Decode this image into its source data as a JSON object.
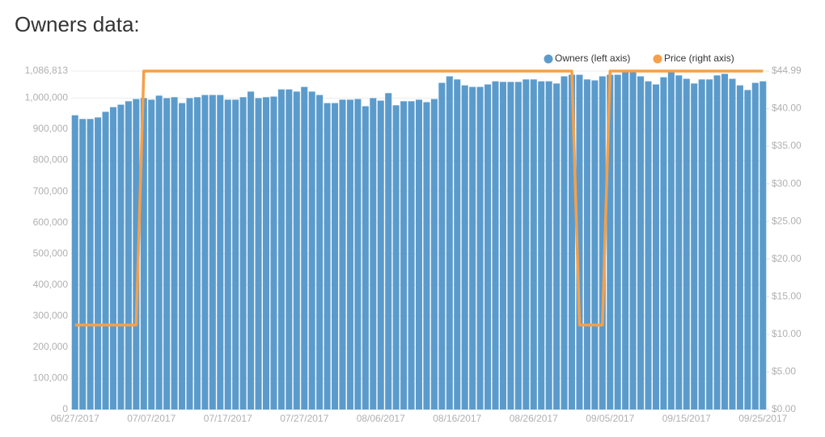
{
  "chart_data": {
    "type": "bar_line",
    "title": "Owners data:",
    "legend": "top-right",
    "grid": true,
    "categories": [
      "06/27/2017",
      null,
      null,
      null,
      null,
      null,
      null,
      null,
      null,
      null,
      "07/07/2017",
      null,
      null,
      null,
      null,
      null,
      null,
      null,
      null,
      null,
      "07/17/2017",
      null,
      null,
      null,
      null,
      null,
      null,
      null,
      null,
      null,
      "07/27/2017",
      null,
      null,
      null,
      null,
      null,
      null,
      null,
      null,
      null,
      "08/06/2017",
      null,
      null,
      null,
      null,
      null,
      null,
      null,
      null,
      null,
      "08/16/2017",
      null,
      null,
      null,
      null,
      null,
      null,
      null,
      null,
      null,
      "08/26/2017",
      null,
      null,
      null,
      null,
      null,
      null,
      null,
      null,
      null,
      "09/05/2017",
      null,
      null,
      null,
      null,
      null,
      null,
      null,
      null,
      null,
      "09/15/2017",
      null,
      null,
      null,
      null,
      null,
      null,
      null,
      null,
      null,
      "09/25/2017"
    ],
    "ylim": [
      0,
      1086813
    ],
    "yticks": [
      0,
      {
        "value": 100000,
        "label": "100,000"
      },
      {
        "value": 200000,
        "label": "200,000"
      },
      {
        "value": 300000,
        "label": "300,000"
      },
      {
        "value": 400000,
        "label": "400,000"
      },
      {
        "value": 500000,
        "label": "500,000"
      },
      {
        "value": 600000,
        "label": "600,000"
      },
      {
        "value": 700000,
        "label": "700,000"
      },
      {
        "value": 800000,
        "label": "800,000"
      },
      {
        "value": 900000,
        "label": "900,000"
      },
      {
        "value": 1000000,
        "label": "1,000,000"
      },
      {
        "value": 1086813,
        "label": "1,086,813"
      }
    ],
    "y2lim": [
      0,
      44.99
    ],
    "y2ticks": [
      {
        "value": 0,
        "label": "$0.00"
      },
      {
        "value": 5,
        "label": "$5.00"
      },
      {
        "value": 10,
        "label": "$10.00"
      },
      {
        "value": 15,
        "label": "$15.00"
      },
      {
        "value": 20,
        "label": "$20.00"
      },
      {
        "value": 25,
        "label": "$25.00"
      },
      {
        "value": 30,
        "label": "$30.00"
      },
      {
        "value": 35,
        "label": "$35.00"
      },
      {
        "value": 40,
        "label": "$40.00"
      },
      {
        "value": 44.99,
        "label": "$44.99"
      }
    ],
    "series": [
      {
        "name": "Owners (left axis)",
        "type": "bar",
        "color": "#5b9bcc",
        "values": [
          945000,
          933000,
          933000,
          938000,
          956000,
          971000,
          979000,
          990000,
          997000,
          1000000,
          995000,
          1008000,
          1000000,
          1003000,
          984000,
          1000000,
          1003000,
          1010000,
          1010000,
          1010000,
          995000,
          995000,
          1003000,
          1021000,
          1000000,
          1003000,
          1005000,
          1028000,
          1028000,
          1021000,
          1036000,
          1021000,
          1010000,
          984000,
          984000,
          995000,
          995000,
          997000,
          974000,
          1000000,
          992000,
          1016000,
          977000,
          990000,
          990000,
          995000,
          987000,
          997000,
          1049000,
          1070000,
          1060000,
          1041000,
          1036000,
          1036000,
          1044000,
          1054000,
          1052000,
          1052000,
          1052000,
          1060000,
          1060000,
          1054000,
          1054000,
          1047000,
          1070000,
          1075000,
          1075000,
          1060000,
          1057000,
          1070000,
          1075000,
          1075000,
          1083000,
          1085000,
          1070000,
          1054000,
          1044000,
          1067000,
          1085000,
          1073000,
          1062000,
          1047000,
          1060000,
          1060000,
          1073000,
          1078000,
          1062000,
          1041000,
          1026000,
          1049000,
          1054000
        ]
      },
      {
        "name": "Price (right axis)",
        "type": "line",
        "axis": "y2",
        "color": "#f5a04a",
        "values": [
          11.24,
          11.24,
          11.24,
          11.24,
          11.24,
          11.24,
          11.24,
          11.24,
          11.24,
          44.99,
          44.99,
          44.99,
          44.99,
          44.99,
          44.99,
          44.99,
          44.99,
          44.99,
          44.99,
          44.99,
          44.99,
          44.99,
          44.99,
          44.99,
          44.99,
          44.99,
          44.99,
          44.99,
          44.99,
          44.99,
          44.99,
          44.99,
          44.99,
          44.99,
          44.99,
          44.99,
          44.99,
          44.99,
          44.99,
          44.99,
          44.99,
          44.99,
          44.99,
          44.99,
          44.99,
          44.99,
          44.99,
          44.99,
          44.99,
          44.99,
          44.99,
          44.99,
          44.99,
          44.99,
          44.99,
          44.99,
          44.99,
          44.99,
          44.99,
          44.99,
          44.99,
          44.99,
          44.99,
          44.99,
          44.99,
          44.99,
          11.24,
          11.24,
          11.24,
          11.24,
          44.99,
          44.99,
          44.99,
          44.99,
          44.99,
          44.99,
          44.99,
          44.99,
          44.99,
          44.99,
          44.99,
          44.99,
          44.99,
          44.99,
          44.99,
          44.99,
          44.99,
          44.99,
          44.99,
          44.99,
          44.99
        ]
      }
    ]
  }
}
